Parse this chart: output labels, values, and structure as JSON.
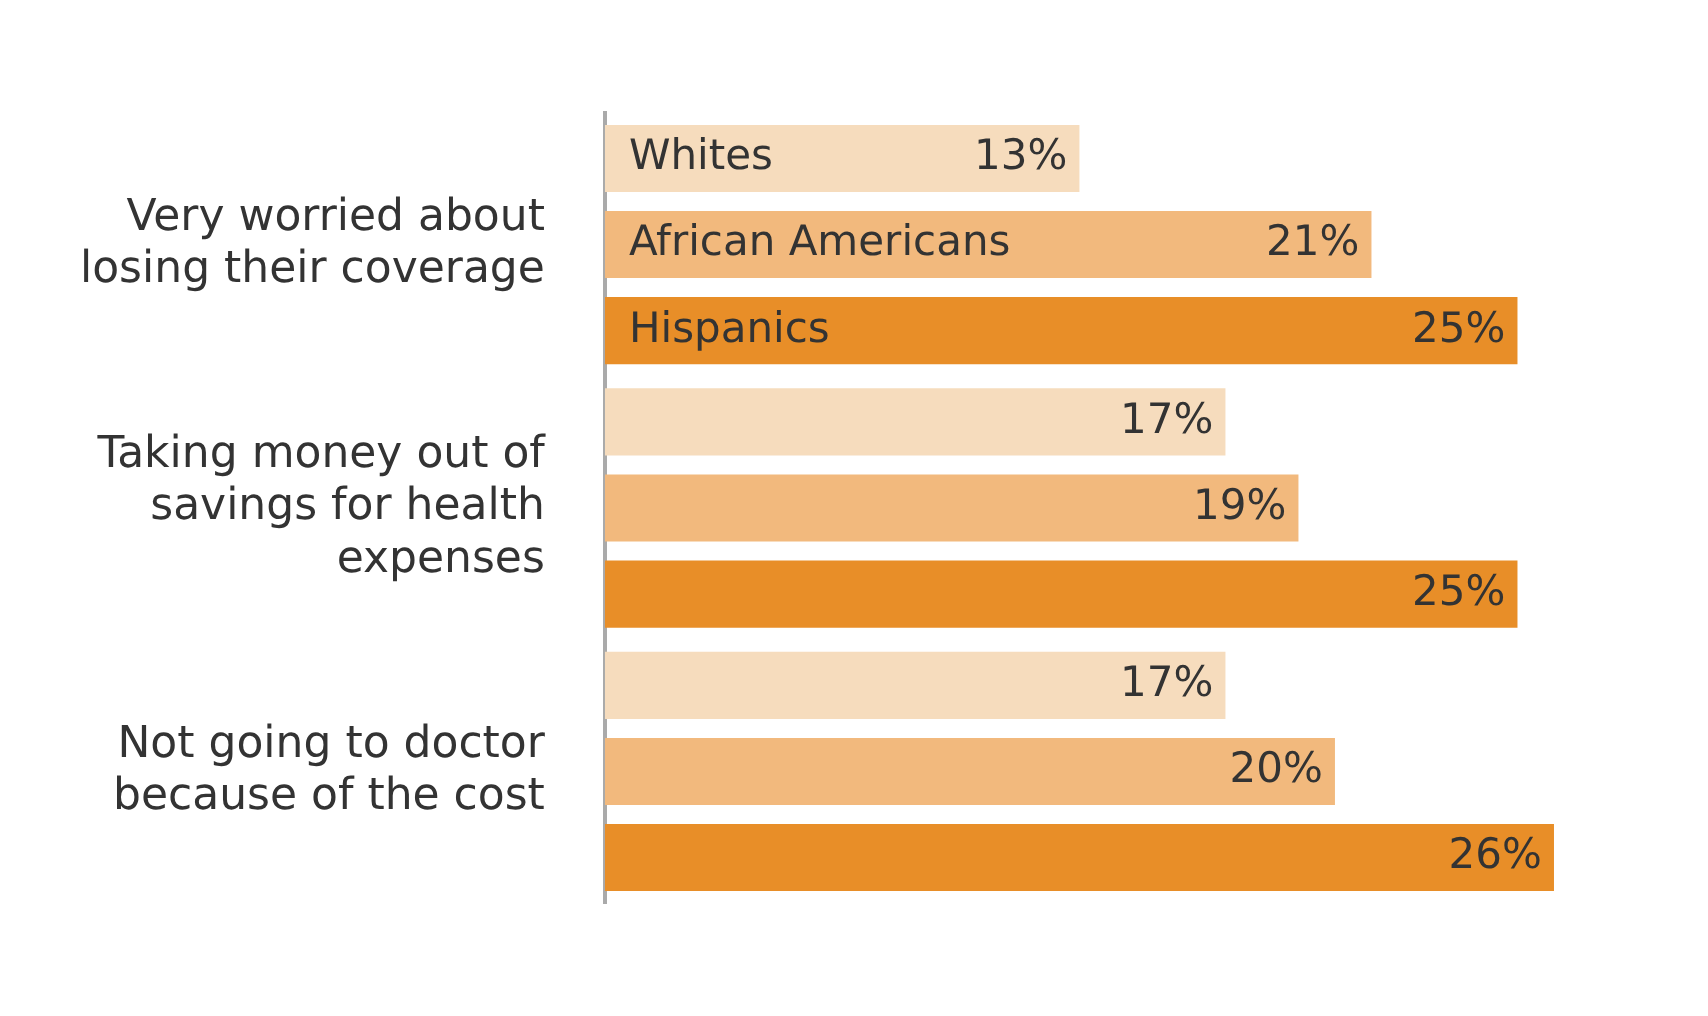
{
  "chart_data": {
    "type": "bar",
    "orientation": "horizontal",
    "legend": false,
    "tick_labels": "y",
    "categories": [
      "Very worried about losing their coverage",
      "Taking money out of savings for health expenses",
      "Not going to doctor because of the cost"
    ],
    "series": [
      {
        "name": "Whites",
        "color": "#f6dcbd",
        "values": [
          13,
          17,
          17
        ],
        "value_labels": [
          "13%",
          "17%",
          "17%"
        ]
      },
      {
        "name": "African Americans",
        "color": "#f2b97d",
        "values": [
          21,
          19,
          20
        ],
        "value_labels": [
          "21%",
          "19%",
          "20%"
        ]
      },
      {
        "name": "Hispanics",
        "color": "#e88e28",
        "values": [
          25,
          25,
          26
        ],
        "value_labels": [
          "25%",
          "25%",
          "26%"
        ]
      }
    ]
  }
}
